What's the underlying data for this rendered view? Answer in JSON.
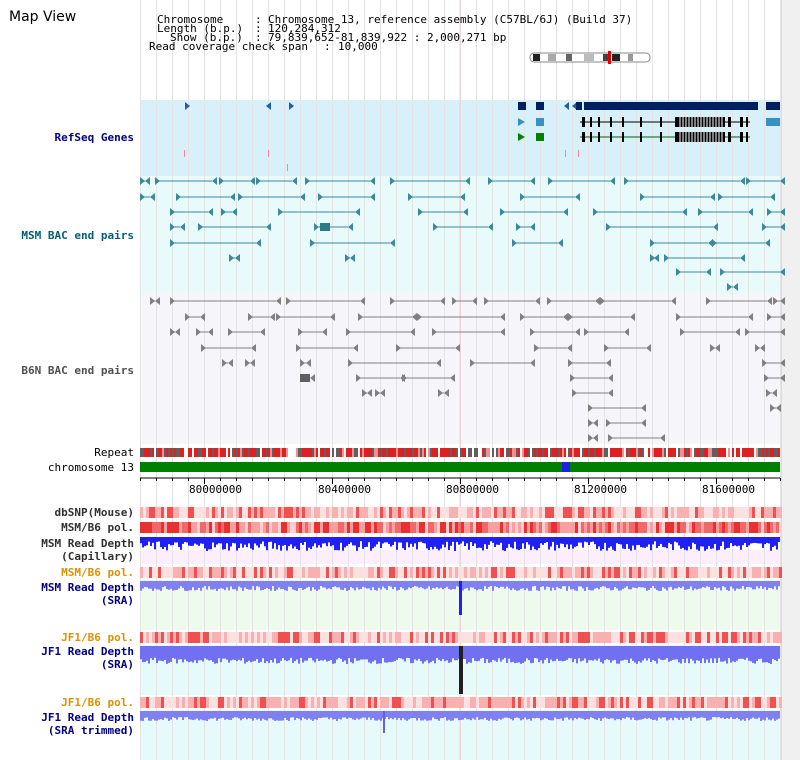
{
  "window": {
    "title": "Map View"
  },
  "header": {
    "chromosome_label": "Chromosome",
    "chromosome_value": "Chromosome 13, reference assembly (C57BL/6J) (Build 37)",
    "length_label": "Length (b.p.)",
    "length_value": "120,284,312",
    "show_label": "Show (b.p.)",
    "show_value": "79,839,652-81,839,922 : 2,000,271 bp",
    "span_label": "Read coverage check span",
    "span_value": "10,000",
    "separator": ":"
  },
  "tracks": {
    "refseq": "RefSeq Genes",
    "msm_bac": "MSM BAC end pairs",
    "b6n_bac": "B6N BAC end pairs",
    "repeat": "Repeat",
    "chromosome": "chromosome 13",
    "dbsnp": "dbSNP(Mouse)",
    "msm_b6_pol": "MSM/B6 pol.",
    "msm_depth_cap_1": "MSM Read Depth",
    "msm_depth_cap_2": "(Capillary)",
    "msm_b6_pol_2": "MSM/B6 pol.",
    "msm_depth_sra_1": "MSM Read Depth",
    "msm_depth_sra_2": "(SRA)",
    "jf1_b6_pol": "JF1/B6 pol.",
    "jf1_depth_sra_1": "JF1 Read Depth",
    "jf1_depth_sra_2": "(SRA)",
    "jf1_b6_pol_2": "JF1/B6 pol.",
    "jf1_depth_trim_1": "JF1 Read Depth",
    "jf1_depth_trim_2": "(SRA trimmed)"
  },
  "axis": {
    "ticks": [
      "80000000",
      "80400000",
      "80800000",
      "81200000",
      "81600000"
    ]
  },
  "colors": {
    "refseq_bg": "#d8f0fa",
    "bac_bg": "#e8fafa",
    "b6n_bg": "#f6f6fa",
    "chromosome_band": "#008000",
    "gene_navy": "#002060"
  }
}
